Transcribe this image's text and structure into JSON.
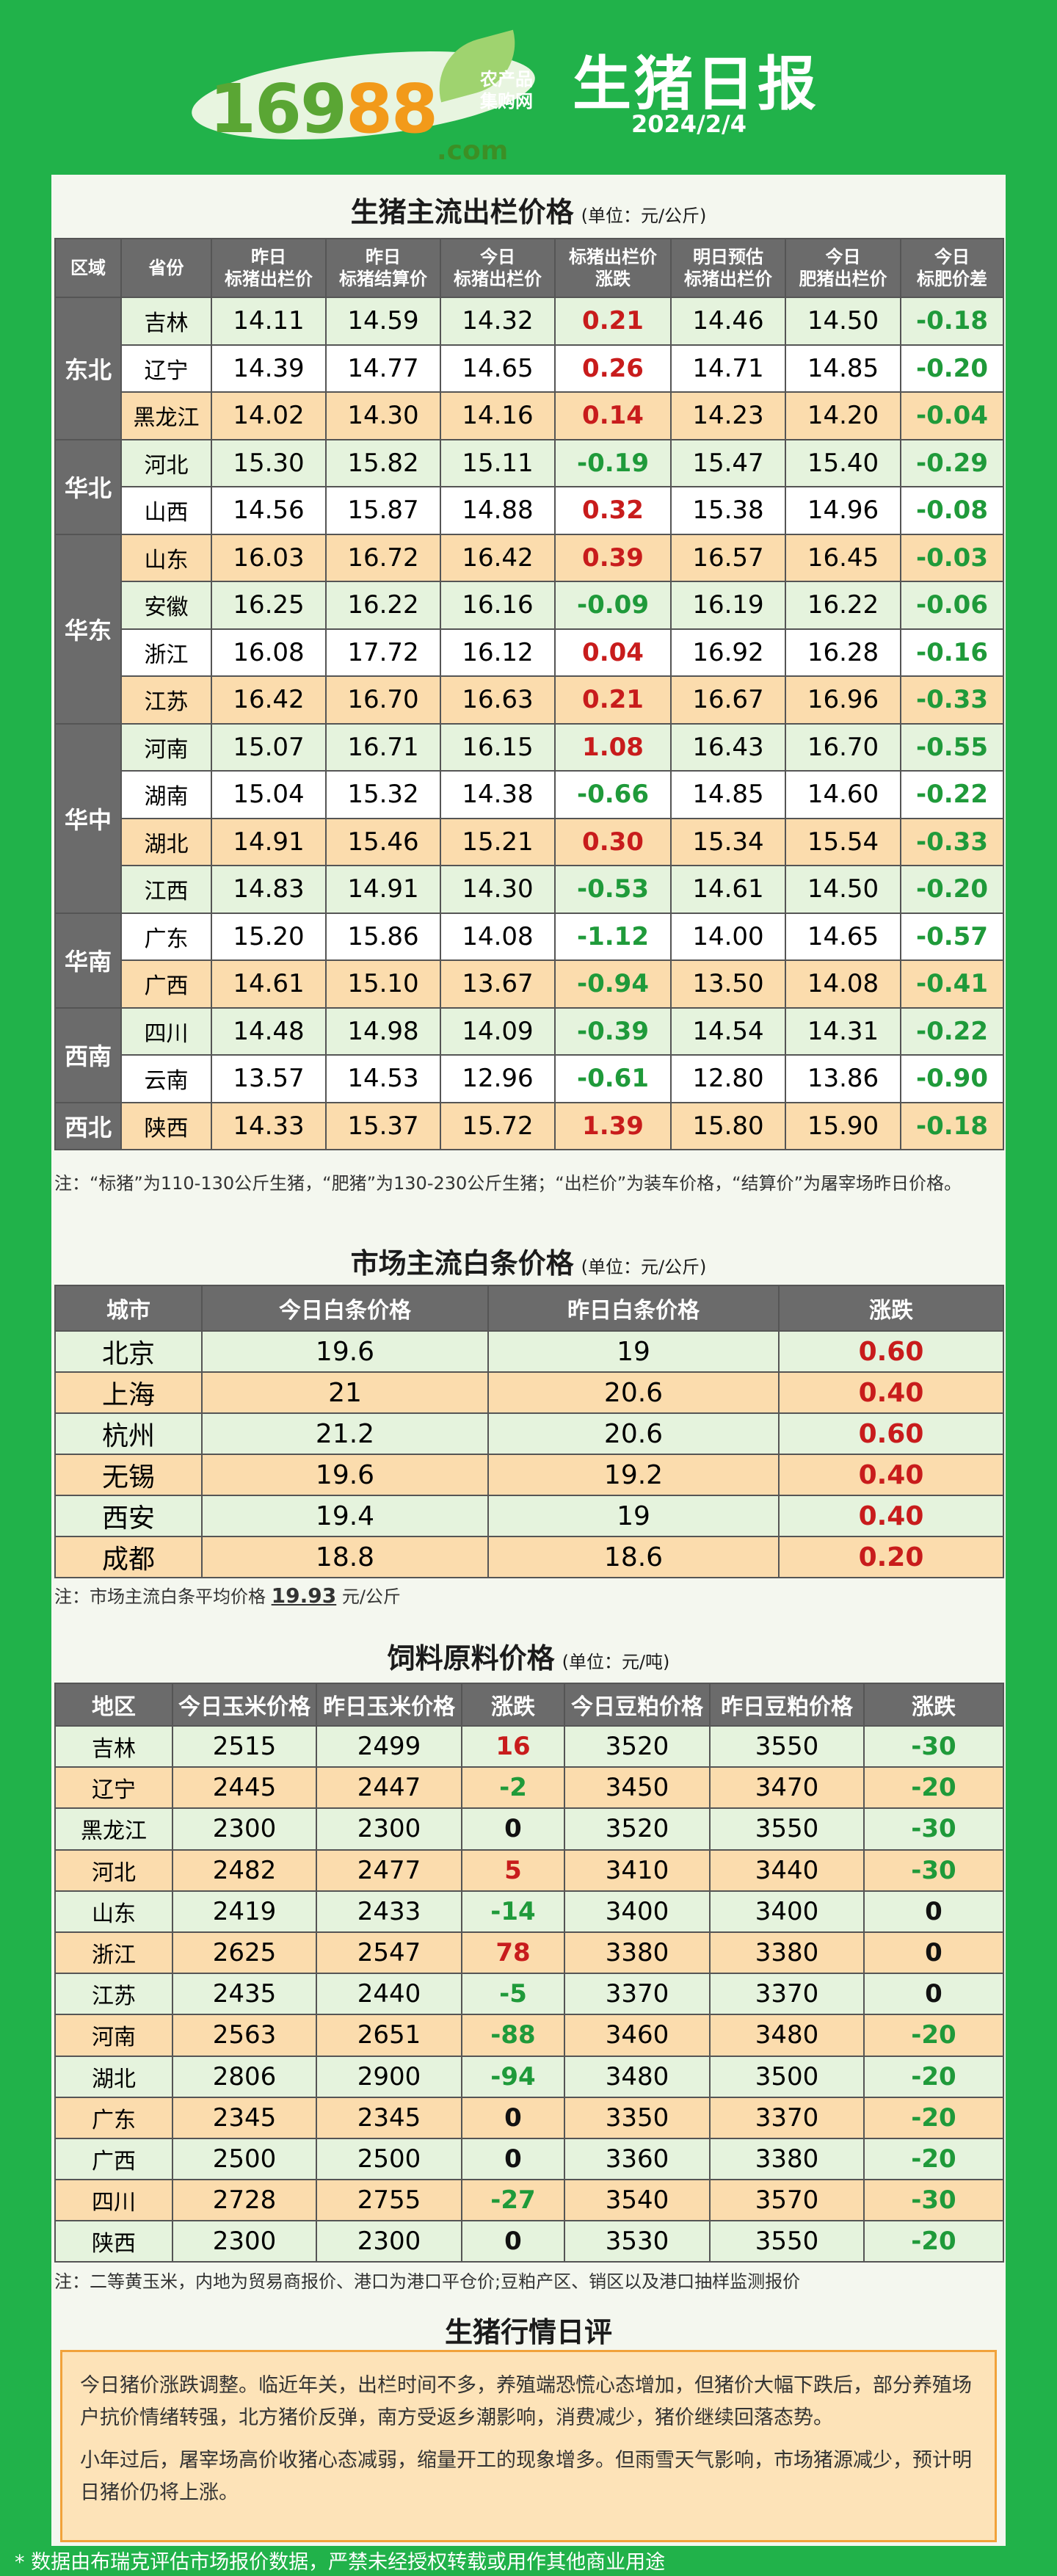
{
  "header": {
    "logo_num_a": "169",
    "logo_num_b": "88",
    "logo_sub_top": "农产品集购网",
    "logo_sub_bottom": ".com",
    "title": "生猪日报",
    "date": "2024/2/4"
  },
  "section1": {
    "title": "生猪主流出栏价格",
    "unit": "(单位：元/公斤)",
    "headers": [
      "区域",
      "省份",
      "昨日\n标猪出栏价",
      "昨日\n标猪结算价",
      "今日\n标猪出栏价",
      "标猪出栏价\n涨跌",
      "明日预估\n标猪出栏价",
      "今日\n肥猪出栏价",
      "今日\n标肥价差"
    ],
    "rows": [
      {
        "region": "东北",
        "province": "吉林",
        "y_out": "14.11",
        "y_settle": "14.59",
        "t_out": "14.32",
        "change": "0.21",
        "tomorrow": "14.46",
        "fat": "14.50",
        "spread": "-0.18"
      },
      {
        "region": "",
        "province": "辽宁",
        "y_out": "14.39",
        "y_settle": "14.77",
        "t_out": "14.65",
        "change": "0.26",
        "tomorrow": "14.71",
        "fat": "14.85",
        "spread": "-0.20"
      },
      {
        "region": "",
        "province": "黑龙江",
        "y_out": "14.02",
        "y_settle": "14.30",
        "t_out": "14.16",
        "change": "0.14",
        "tomorrow": "14.23",
        "fat": "14.20",
        "spread": "-0.04"
      },
      {
        "region": "华北",
        "province": "河北",
        "y_out": "15.30",
        "y_settle": "15.82",
        "t_out": "15.11",
        "change": "-0.19",
        "tomorrow": "15.47",
        "fat": "15.40",
        "spread": "-0.29"
      },
      {
        "region": "",
        "province": "山西",
        "y_out": "14.56",
        "y_settle": "15.87",
        "t_out": "14.88",
        "change": "0.32",
        "tomorrow": "15.38",
        "fat": "14.96",
        "spread": "-0.08"
      },
      {
        "region": "华东",
        "province": "山东",
        "y_out": "16.03",
        "y_settle": "16.72",
        "t_out": "16.42",
        "change": "0.39",
        "tomorrow": "16.57",
        "fat": "16.45",
        "spread": "-0.03"
      },
      {
        "region": "",
        "province": "安徽",
        "y_out": "16.25",
        "y_settle": "16.22",
        "t_out": "16.16",
        "change": "-0.09",
        "tomorrow": "16.19",
        "fat": "16.22",
        "spread": "-0.06"
      },
      {
        "region": "",
        "province": "浙江",
        "y_out": "16.08",
        "y_settle": "17.72",
        "t_out": "16.12",
        "change": "0.04",
        "tomorrow": "16.92",
        "fat": "16.28",
        "spread": "-0.16"
      },
      {
        "region": "",
        "province": "江苏",
        "y_out": "16.42",
        "y_settle": "16.70",
        "t_out": "16.63",
        "change": "0.21",
        "tomorrow": "16.67",
        "fat": "16.96",
        "spread": "-0.33"
      },
      {
        "region": "华中",
        "province": "河南",
        "y_out": "15.07",
        "y_settle": "16.71",
        "t_out": "16.15",
        "change": "1.08",
        "tomorrow": "16.43",
        "fat": "16.70",
        "spread": "-0.55"
      },
      {
        "region": "",
        "province": "湖南",
        "y_out": "15.04",
        "y_settle": "15.32",
        "t_out": "14.38",
        "change": "-0.66",
        "tomorrow": "14.85",
        "fat": "14.60",
        "spread": "-0.22"
      },
      {
        "region": "",
        "province": "湖北",
        "y_out": "14.91",
        "y_settle": "15.46",
        "t_out": "15.21",
        "change": "0.30",
        "tomorrow": "15.34",
        "fat": "15.54",
        "spread": "-0.33"
      },
      {
        "region": "",
        "province": "江西",
        "y_out": "14.83",
        "y_settle": "14.91",
        "t_out": "14.30",
        "change": "-0.53",
        "tomorrow": "14.61",
        "fat": "14.50",
        "spread": "-0.20"
      },
      {
        "region": "华南",
        "province": "广东",
        "y_out": "15.20",
        "y_settle": "15.86",
        "t_out": "14.08",
        "change": "-1.12",
        "tomorrow": "14.00",
        "fat": "14.65",
        "spread": "-0.57"
      },
      {
        "region": "",
        "province": "广西",
        "y_out": "14.61",
        "y_settle": "15.10",
        "t_out": "13.67",
        "change": "-0.94",
        "tomorrow": "13.50",
        "fat": "14.08",
        "spread": "-0.41"
      },
      {
        "region": "西南",
        "province": "四川",
        "y_out": "14.48",
        "y_settle": "14.98",
        "t_out": "14.09",
        "change": "-0.39",
        "tomorrow": "14.54",
        "fat": "14.31",
        "spread": "-0.22"
      },
      {
        "region": "",
        "province": "云南",
        "y_out": "13.57",
        "y_settle": "14.53",
        "t_out": "12.96",
        "change": "-0.61",
        "tomorrow": "12.80",
        "fat": "13.86",
        "spread": "-0.90"
      },
      {
        "region": "西北",
        "province": "陕西",
        "y_out": "14.33",
        "y_settle": "15.37",
        "t_out": "15.72",
        "change": "1.39",
        "tomorrow": "15.80",
        "fat": "15.90",
        "spread": "-0.18"
      }
    ],
    "note": "注：“标猪”为110-130公斤生猪，“肥猪”为130-230公斤生猪；“出栏价”为装车价格，“结算价”为屠宰场昨日价格。"
  },
  "section2": {
    "title": "市场主流白条价格",
    "unit": "(单位：元/公斤)",
    "headers": [
      "城市",
      "今日白条价格",
      "昨日白条价格",
      "涨跌"
    ],
    "rows": [
      {
        "city": "北京",
        "today": "19.6",
        "yesterday": "19",
        "change": "0.60"
      },
      {
        "city": "上海",
        "today": "21",
        "yesterday": "20.6",
        "change": "0.40"
      },
      {
        "city": "杭州",
        "today": "21.2",
        "yesterday": "20.6",
        "change": "0.60"
      },
      {
        "city": "无锡",
        "today": "19.6",
        "yesterday": "19.2",
        "change": "0.40"
      },
      {
        "city": "西安",
        "today": "19.4",
        "yesterday": "19",
        "change": "0.40"
      },
      {
        "city": "成都",
        "today": "18.8",
        "yesterday": "18.6",
        "change": "0.20"
      }
    ],
    "note_prefix": "注：市场主流白条平均价格 ",
    "avg": "19.93",
    "note_suffix": " 元/公斤"
  },
  "section3": {
    "title": "饲料原料价格",
    "unit": "(单位：元/吨)",
    "headers": [
      "地区",
      "今日玉米价格",
      "昨日玉米价格",
      "涨跌",
      "今日豆粕价格",
      "昨日豆粕价格",
      "涨跌"
    ],
    "rows": [
      {
        "area": "吉林",
        "corn_t": "2515",
        "corn_y": "2499",
        "corn_c": "16",
        "soy_t": "3520",
        "soy_y": "3550",
        "soy_c": "-30"
      },
      {
        "area": "辽宁",
        "corn_t": "2445",
        "corn_y": "2447",
        "corn_c": "-2",
        "soy_t": "3450",
        "soy_y": "3470",
        "soy_c": "-20"
      },
      {
        "area": "黑龙江",
        "corn_t": "2300",
        "corn_y": "2300",
        "corn_c": "0",
        "soy_t": "3520",
        "soy_y": "3550",
        "soy_c": "-30"
      },
      {
        "area": "河北",
        "corn_t": "2482",
        "corn_y": "2477",
        "corn_c": "5",
        "soy_t": "3410",
        "soy_y": "3440",
        "soy_c": "-30"
      },
      {
        "area": "山东",
        "corn_t": "2419",
        "corn_y": "2433",
        "corn_c": "-14",
        "soy_t": "3400",
        "soy_y": "3400",
        "soy_c": "0"
      },
      {
        "area": "浙江",
        "corn_t": "2625",
        "corn_y": "2547",
        "corn_c": "78",
        "soy_t": "3380",
        "soy_y": "3380",
        "soy_c": "0"
      },
      {
        "area": "江苏",
        "corn_t": "2435",
        "corn_y": "2440",
        "corn_c": "-5",
        "soy_t": "3370",
        "soy_y": "3370",
        "soy_c": "0"
      },
      {
        "area": "河南",
        "corn_t": "2563",
        "corn_y": "2651",
        "corn_c": "-88",
        "soy_t": "3460",
        "soy_y": "3480",
        "soy_c": "-20"
      },
      {
        "area": "湖北",
        "corn_t": "2806",
        "corn_y": "2900",
        "corn_c": "-94",
        "soy_t": "3480",
        "soy_y": "3500",
        "soy_c": "-20"
      },
      {
        "area": "广东",
        "corn_t": "2345",
        "corn_y": "2345",
        "corn_c": "0",
        "soy_t": "3350",
        "soy_y": "3370",
        "soy_c": "-20"
      },
      {
        "area": "广西",
        "corn_t": "2500",
        "corn_y": "2500",
        "corn_c": "0",
        "soy_t": "3360",
        "soy_y": "3380",
        "soy_c": "-20"
      },
      {
        "area": "四川",
        "corn_t": "2728",
        "corn_y": "2755",
        "corn_c": "-27",
        "soy_t": "3540",
        "soy_y": "3570",
        "soy_c": "-30"
      },
      {
        "area": "陕西",
        "corn_t": "2300",
        "corn_y": "2300",
        "corn_c": "0",
        "soy_t": "3530",
        "soy_y": "3550",
        "soy_c": "-20"
      }
    ],
    "note": "注：二等黄玉米，内地为贸易商报价、港口为港口平仓价;豆粕产区、销区以及港口抽样监测报价"
  },
  "section4": {
    "title": "生猪行情日评",
    "para1": "今日猪价涨跌调整。临近年关，出栏时间不多，养殖端恐慌心态增加，但猪价大幅下跌后，部分养殖场户抗价情绪转强，北方猪价反弹，南方受返乡潮影响，消费减少，猪价继续回落态势。",
    "para2": "小年过后，屠宰场高价收猪心态减弱，缩量开工的现象增多。但雨雪天气影响，市场猪源减少，预计明日猪价仍将上涨。"
  },
  "footer": "* 数据由布瑞克评估市场报价数据，严禁未经授权转载或用作其他商业用途",
  "colors": {
    "up": "#c81c1c",
    "down": "#1f9a3a",
    "brand_green": "#21b24a",
    "header_gray": "#6b6b6b"
  }
}
